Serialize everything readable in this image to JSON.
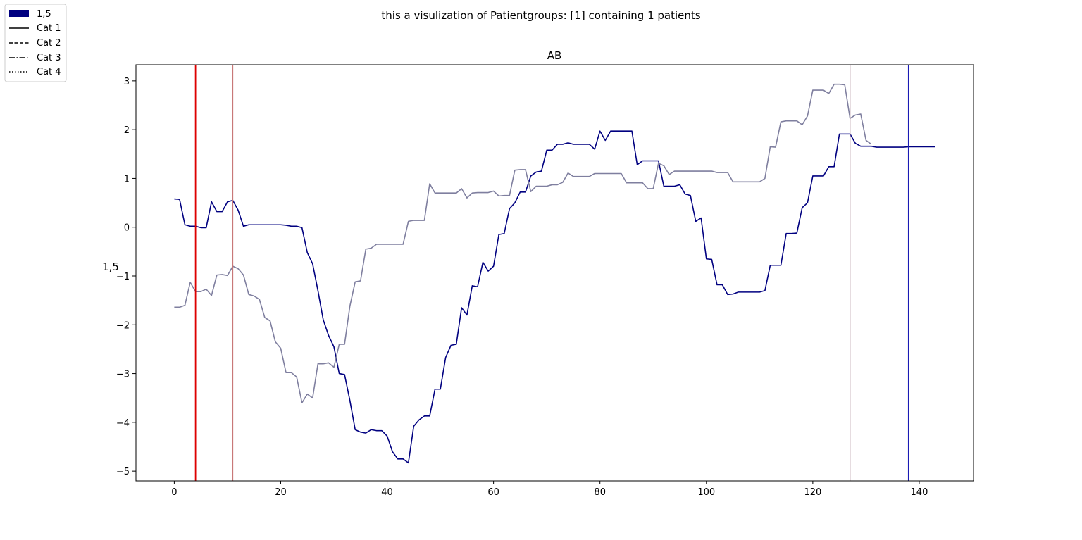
{
  "suptitle": "this a visulization of Patientgroups: [1] containing 1 patients",
  "legend": {
    "placement": "upper-left outside",
    "patch": {
      "label": "1,5",
      "color": "#000080"
    },
    "lines": [
      {
        "label": "Cat 1",
        "style": "solid"
      },
      {
        "label": "Cat 2",
        "style": "dashed"
      },
      {
        "label": "Cat 3",
        "style": "dashdot"
      },
      {
        "label": "Cat 4",
        "style": "dotted"
      }
    ]
  },
  "chart_data": {
    "type": "line",
    "title": "AB",
    "xlabel": "",
    "ylabel": "1,5",
    "xlim": [
      -7.2,
      150.2
    ],
    "ylim": [
      -5.2,
      3.33
    ],
    "xticks": [
      0,
      20,
      40,
      60,
      80,
      100,
      120,
      140
    ],
    "yticks": [
      3,
      2,
      1,
      0,
      -1,
      -2,
      -3,
      -4,
      -5
    ],
    "grid": false,
    "series": [
      {
        "color": "#000080",
        "x": [
          0,
          1,
          2,
          3,
          4,
          5,
          6,
          7,
          8,
          9,
          10,
          11,
          12,
          13,
          14,
          15,
          16,
          17,
          18,
          19,
          20,
          21,
          22,
          23,
          24,
          25,
          26,
          27,
          28,
          29,
          30,
          31,
          32,
          33,
          34,
          35,
          36,
          37,
          38,
          39,
          40,
          41,
          42,
          43,
          44,
          45,
          46,
          47,
          48,
          49,
          50,
          51,
          52,
          53,
          54,
          55,
          56,
          57,
          58,
          59,
          60,
          61,
          62,
          63,
          64,
          65,
          66,
          67,
          68,
          69,
          70,
          71,
          72,
          73,
          74,
          75,
          76,
          77,
          78,
          79,
          80,
          81,
          82,
          83,
          84,
          85,
          86,
          87,
          88,
          89,
          90,
          91,
          92,
          93,
          94,
          95,
          96,
          97,
          98,
          99,
          100,
          101,
          102,
          103,
          104,
          105,
          106,
          107,
          108,
          109,
          110,
          111,
          112,
          113,
          114,
          115,
          116,
          117,
          118,
          119,
          120,
          121,
          122,
          123,
          124,
          125,
          126,
          127,
          128,
          129,
          130,
          131,
          132,
          133,
          134,
          135,
          136,
          137,
          138,
          139,
          140,
          141,
          142,
          143
        ],
        "y": [
          0.58,
          0.57,
          0.05,
          0.02,
          0.02,
          -0.01,
          -0.01,
          0.52,
          0.32,
          0.32,
          0.52,
          0.55,
          0.35,
          0.02,
          0.05,
          0.05,
          0.05,
          0.05,
          0.05,
          0.05,
          0.05,
          0.04,
          0.02,
          0.02,
          -0.01,
          -0.52,
          -0.75,
          -1.3,
          -1.9,
          -2.22,
          -2.45,
          -3.0,
          -3.02,
          -3.55,
          -4.15,
          -4.2,
          -4.22,
          -4.15,
          -4.17,
          -4.17,
          -4.28,
          -4.6,
          -4.75,
          -4.75,
          -4.83,
          -4.08,
          -3.95,
          -3.87,
          -3.87,
          -3.32,
          -3.32,
          -2.67,
          -2.42,
          -2.4,
          -1.65,
          -1.8,
          -1.2,
          -1.22,
          -0.72,
          -0.9,
          -0.8,
          -0.15,
          -0.13,
          0.38,
          0.5,
          0.72,
          0.72,
          1.05,
          1.13,
          1.15,
          1.58,
          1.58,
          1.7,
          1.7,
          1.73,
          1.7,
          1.7,
          1.7,
          1.7,
          1.6,
          1.97,
          1.78,
          1.97,
          1.97,
          1.97,
          1.97,
          1.97,
          1.28,
          1.36,
          1.36,
          1.36,
          1.36,
          0.84,
          0.84,
          0.84,
          0.87,
          0.68,
          0.65,
          0.12,
          0.19,
          -0.65,
          -0.66,
          -1.18,
          -1.18,
          -1.38,
          -1.37,
          -1.33,
          -1.33,
          -1.33,
          -1.33,
          -1.33,
          -1.3,
          -0.78,
          -0.78,
          -0.78,
          -0.13,
          -0.13,
          -0.12,
          0.4,
          0.5,
          1.05,
          1.05,
          1.05,
          1.24,
          1.24,
          1.91,
          1.91,
          1.91,
          1.72,
          1.66,
          1.66,
          1.66,
          1.64,
          1.64,
          1.64,
          1.64,
          1.64,
          1.64,
          1.65,
          1.65,
          1.65,
          1.65,
          1.65,
          1.65
        ]
      },
      {
        "color": "#7f7f9f",
        "x": [
          0,
          1,
          2,
          3,
          4,
          5,
          6,
          7,
          8,
          9,
          10,
          11,
          12,
          13,
          14,
          15,
          16,
          17,
          18,
          19,
          20,
          21,
          22,
          23,
          24,
          25,
          26,
          27,
          28,
          29,
          30,
          31,
          32,
          33,
          34,
          35,
          36,
          37,
          38,
          39,
          40,
          41,
          42,
          43,
          44,
          45,
          46,
          47,
          48,
          49,
          50,
          51,
          52,
          53,
          54,
          55,
          56,
          57,
          58,
          59,
          60,
          61,
          62,
          63,
          64,
          65,
          66,
          67,
          68,
          69,
          70,
          71,
          72,
          73,
          74,
          75,
          76,
          77,
          78,
          79,
          80,
          81,
          82,
          83,
          84,
          85,
          86,
          87,
          88,
          89,
          90,
          91,
          92,
          93,
          94,
          95,
          96,
          97,
          98,
          99,
          100,
          101,
          102,
          103,
          104,
          105,
          106,
          107,
          108,
          109,
          110,
          111,
          112,
          113,
          114,
          115,
          116,
          117,
          118,
          119,
          120,
          121,
          122,
          123,
          124,
          125,
          126,
          127,
          128,
          129,
          130,
          131
        ],
        "y": [
          -1.64,
          -1.64,
          -1.6,
          -1.13,
          -1.32,
          -1.32,
          -1.27,
          -1.4,
          -0.98,
          -0.97,
          -0.99,
          -0.8,
          -0.85,
          -0.98,
          -1.38,
          -1.41,
          -1.48,
          -1.85,
          -1.92,
          -2.35,
          -2.48,
          -2.98,
          -2.98,
          -3.07,
          -3.6,
          -3.42,
          -3.5,
          -2.8,
          -2.8,
          -2.78,
          -2.87,
          -2.4,
          -2.4,
          -1.62,
          -1.12,
          -1.1,
          -0.45,
          -0.43,
          -0.35,
          -0.35,
          -0.35,
          -0.35,
          -0.35,
          -0.35,
          0.12,
          0.14,
          0.14,
          0.14,
          0.89,
          0.7,
          0.7,
          0.7,
          0.7,
          0.7,
          0.79,
          0.6,
          0.7,
          0.71,
          0.71,
          0.71,
          0.74,
          0.64,
          0.65,
          0.65,
          1.17,
          1.18,
          1.18,
          0.73,
          0.84,
          0.84,
          0.84,
          0.87,
          0.87,
          0.92,
          1.11,
          1.04,
          1.04,
          1.04,
          1.04,
          1.1,
          1.1,
          1.1,
          1.1,
          1.1,
          1.1,
          0.91,
          0.91,
          0.91,
          0.91,
          0.79,
          0.79,
          1.31,
          1.26,
          1.08,
          1.15,
          1.15,
          1.15,
          1.15,
          1.15,
          1.15,
          1.15,
          1.15,
          1.12,
          1.12,
          1.12,
          0.93,
          0.93,
          0.93,
          0.93,
          0.93,
          0.93,
          1.0,
          1.65,
          1.64,
          2.16,
          2.18,
          2.18,
          2.18,
          2.1,
          2.28,
          2.81,
          2.81,
          2.81,
          2.74,
          2.93,
          2.93,
          2.92,
          2.23,
          2.3,
          2.32,
          1.78,
          1.7
        ]
      }
    ],
    "vlines": [
      {
        "x": 4,
        "color": "#dd0000"
      },
      {
        "x": 11,
        "color": "#c87878"
      },
      {
        "x": 127,
        "color": "#c0a8b0"
      },
      {
        "x": 138,
        "color": "#1a1ab4"
      }
    ]
  }
}
